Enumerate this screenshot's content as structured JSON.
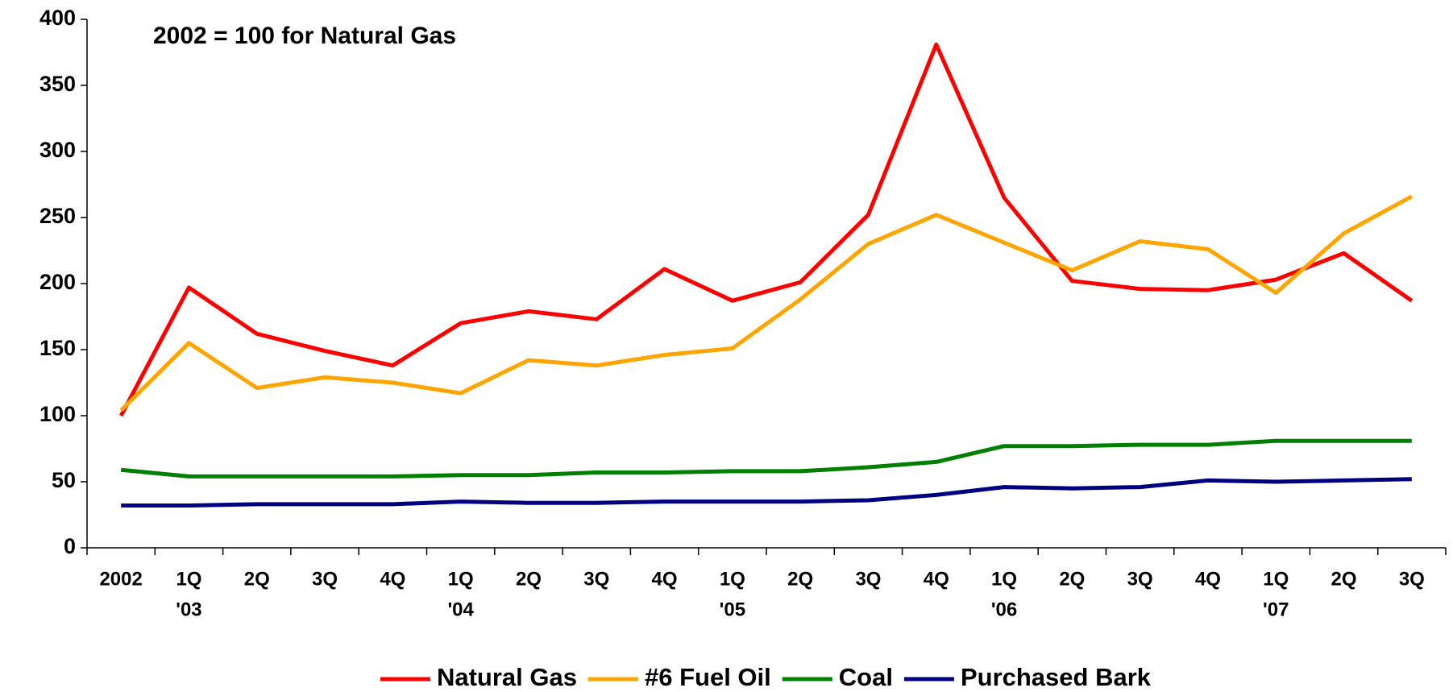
{
  "chart_data": {
    "type": "line",
    "annotation": "2002 = 100 for Natural Gas",
    "categories": [
      "2002",
      "1Q",
      "2Q",
      "3Q",
      "4Q",
      "1Q",
      "2Q",
      "3Q",
      "4Q",
      "1Q",
      "2Q",
      "3Q",
      "4Q",
      "1Q",
      "2Q",
      "3Q",
      "4Q",
      "1Q",
      "2Q",
      "3Q"
    ],
    "x_sublabels": [
      null,
      "'03",
      null,
      null,
      null,
      "'04",
      null,
      null,
      null,
      "'05",
      null,
      null,
      null,
      "'06",
      null,
      null,
      null,
      "'07",
      null,
      null
    ],
    "series": [
      {
        "name": "Natural Gas",
        "color": "#ff0000",
        "values": [
          100,
          197,
          162,
          149,
          138,
          170,
          179,
          173,
          211,
          187,
          201,
          252,
          381,
          265,
          202,
          196,
          195,
          203,
          223,
          187
        ]
      },
      {
        "name": "#6 Fuel Oil",
        "color": "#ffa500",
        "values": [
          104,
          155,
          121,
          129,
          125,
          117,
          142,
          138,
          146,
          151,
          188,
          230,
          252,
          231,
          210,
          232,
          226,
          193,
          238,
          266
        ]
      },
      {
        "name": "Coal",
        "color": "#008000",
        "values": [
          59,
          54,
          54,
          54,
          54,
          55,
          55,
          57,
          57,
          58,
          58,
          61,
          65,
          77,
          77,
          78,
          78,
          81,
          81,
          81
        ]
      },
      {
        "name": "Purchased Bark",
        "color": "#000080",
        "values": [
          32,
          32,
          33,
          33,
          33,
          35,
          34,
          34,
          35,
          35,
          35,
          36,
          40,
          46,
          45,
          46,
          51,
          50,
          51,
          52
        ]
      }
    ],
    "ylim": [
      0,
      400
    ],
    "yticks": [
      0,
      50,
      100,
      150,
      200,
      250,
      300,
      350,
      400
    ],
    "grid": false,
    "legend": "bottom"
  }
}
